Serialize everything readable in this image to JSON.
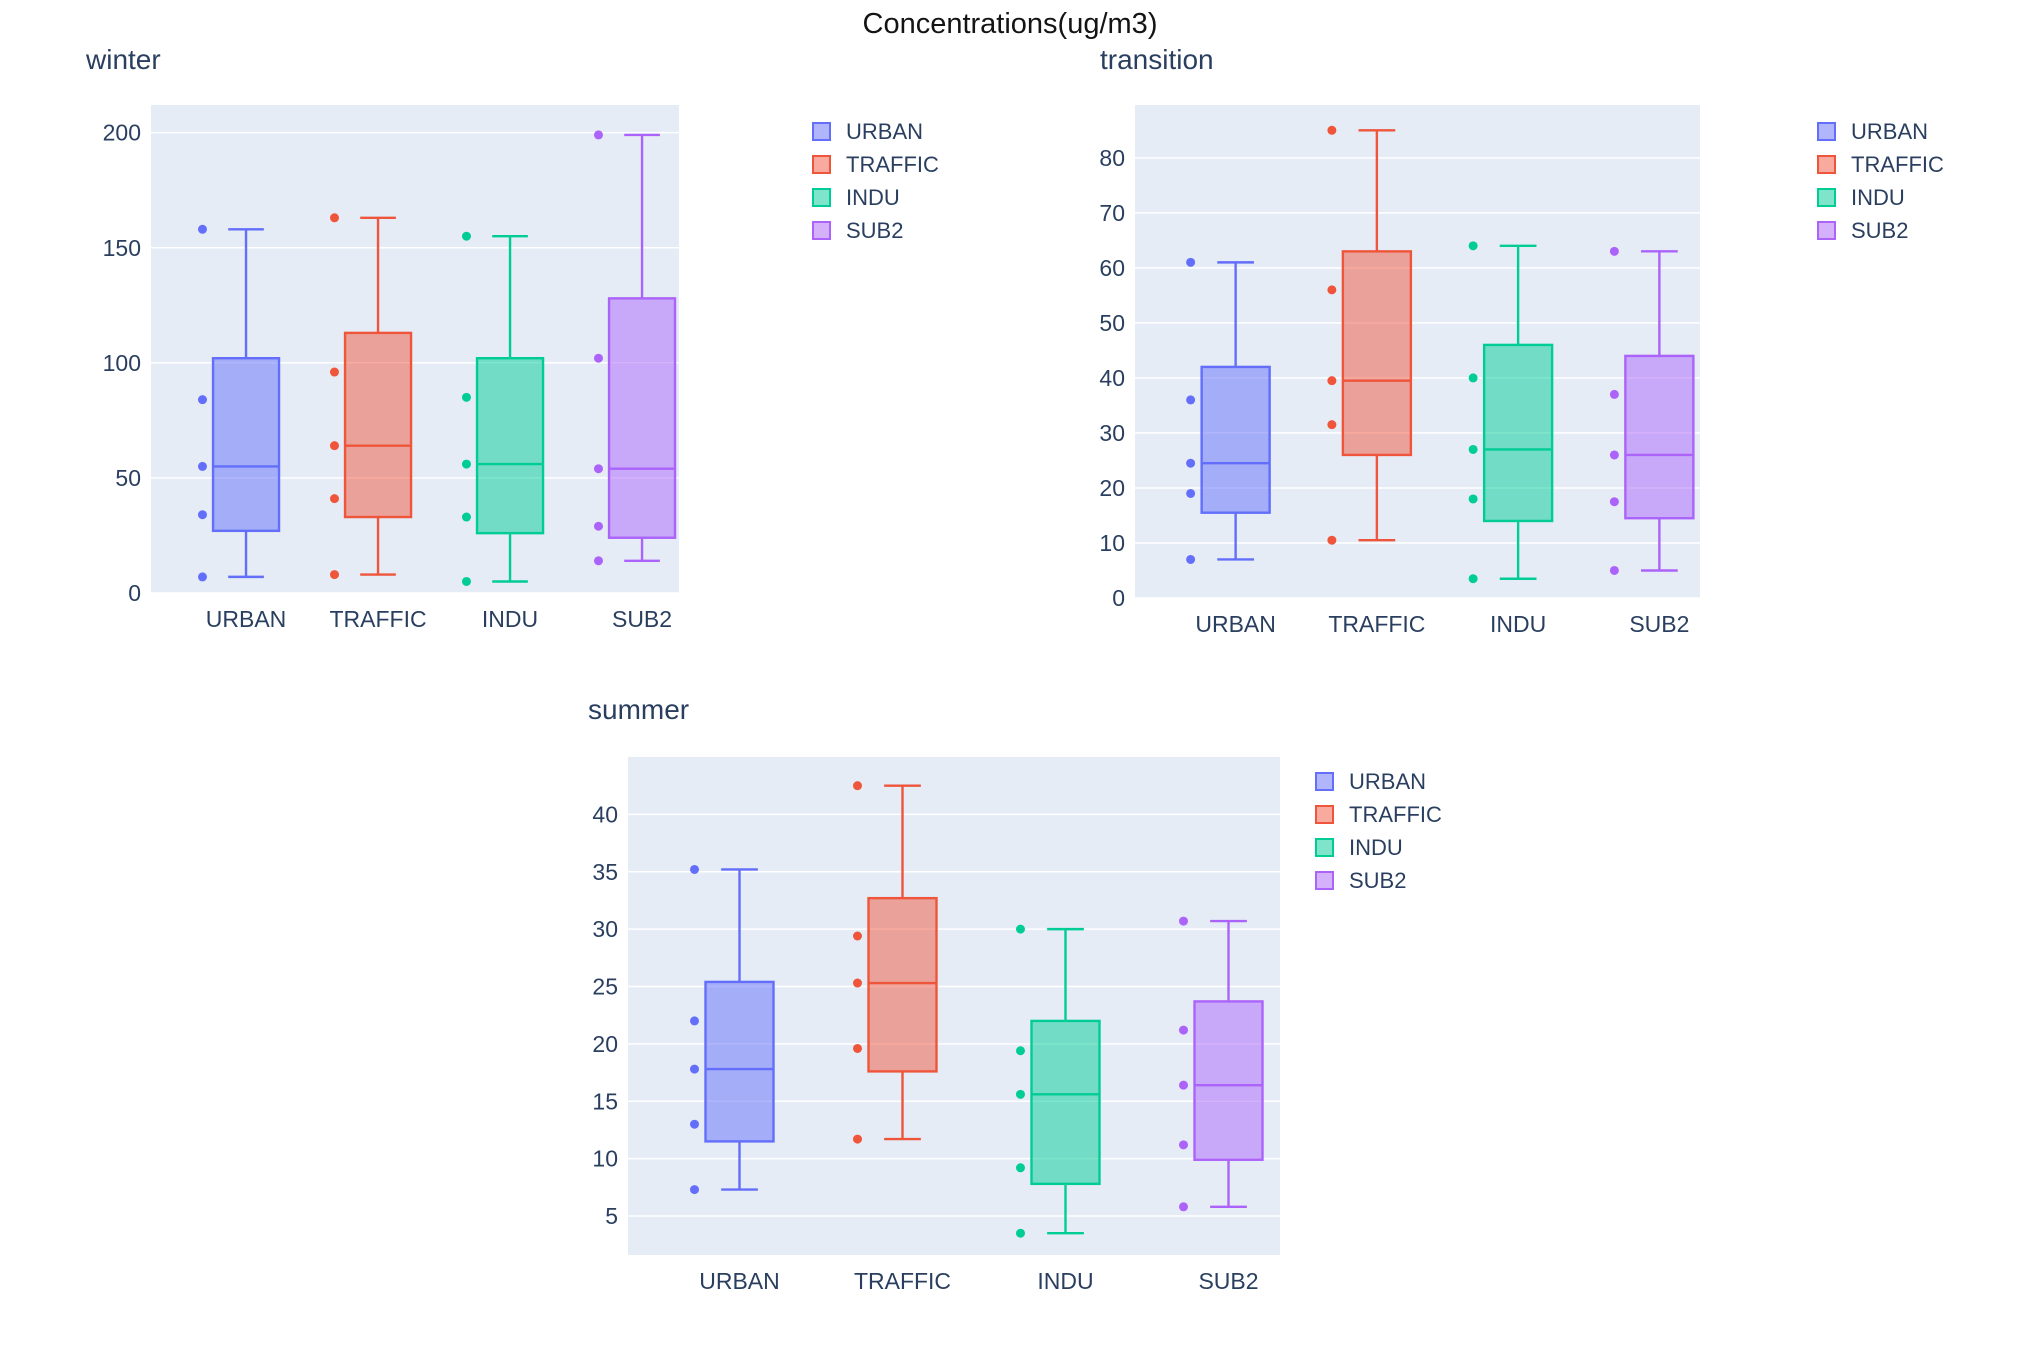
{
  "figure_title": "Concentrations(ug/m3)",
  "colors": {
    "plot_background": "#E5ECF6",
    "gridline": "#FFFFFF",
    "axis_text": "#2a3f5f",
    "title_text": "#141414",
    "URBAN": "#636EFA",
    "TRAFFIC": "#EF553B",
    "INDU": "#00CC96",
    "SUB2": "#AB63FA"
  },
  "legend_items": [
    "URBAN",
    "TRAFFIC",
    "INDU",
    "SUB2"
  ],
  "chart_data": [
    {
      "type": "box",
      "title": "winter",
      "categories": [
        "URBAN",
        "TRAFFIC",
        "INDU",
        "SUB2"
      ],
      "ylim": [
        0,
        212
      ],
      "yticks": [
        0,
        50,
        100,
        150,
        200
      ],
      "grid": true,
      "legend_position": "right",
      "series": [
        {
          "name": "URBAN",
          "color": "#636EFA",
          "low": 7,
          "q1": 27,
          "median": 55,
          "q3": 102,
          "high": 158,
          "points": [
            158,
            84,
            55,
            34,
            7
          ]
        },
        {
          "name": "TRAFFIC",
          "color": "#EF553B",
          "low": 8,
          "q1": 33,
          "median": 64,
          "q3": 113,
          "high": 163,
          "points": [
            163,
            96,
            64,
            41,
            8
          ]
        },
        {
          "name": "INDU",
          "color": "#00CC96",
          "low": 5,
          "q1": 26,
          "median": 56,
          "q3": 102,
          "high": 155,
          "points": [
            155,
            85,
            56,
            33,
            5
          ]
        },
        {
          "name": "SUB2",
          "color": "#AB63FA",
          "low": 14,
          "q1": 24,
          "median": 54,
          "q3": 128,
          "high": 199,
          "points": [
            199,
            102,
            54,
            29,
            14
          ]
        }
      ]
    },
    {
      "type": "box",
      "title": "transition",
      "categories": [
        "URBAN",
        "TRAFFIC",
        "INDU",
        "SUB2"
      ],
      "ylim": [
        0,
        89.6
      ],
      "yticks": [
        0,
        10,
        20,
        30,
        40,
        50,
        60,
        70,
        80
      ],
      "grid": true,
      "legend_position": "right",
      "series": [
        {
          "name": "URBAN",
          "color": "#636EFA",
          "low": 7,
          "q1": 15.5,
          "median": 24.5,
          "q3": 42,
          "high": 61,
          "points": [
            61,
            36,
            24.5,
            19,
            7
          ]
        },
        {
          "name": "TRAFFIC",
          "color": "#EF553B",
          "low": 10.5,
          "q1": 26,
          "median": 39.5,
          "q3": 63,
          "high": 85,
          "points": [
            85,
            56,
            39.5,
            31.5,
            10.5
          ]
        },
        {
          "name": "INDU",
          "color": "#00CC96",
          "low": 3.5,
          "q1": 14,
          "median": 27,
          "q3": 46,
          "high": 64,
          "points": [
            64,
            40,
            27,
            18,
            3.5
          ]
        },
        {
          "name": "SUB2",
          "color": "#AB63FA",
          "low": 5,
          "q1": 14.5,
          "median": 26,
          "q3": 44,
          "high": 63,
          "points": [
            63,
            37,
            26,
            17.5,
            5
          ]
        }
      ]
    },
    {
      "type": "box",
      "title": "summer",
      "categories": [
        "URBAN",
        "TRAFFIC",
        "INDU",
        "SUB2"
      ],
      "ylim": [
        1.6,
        45
      ],
      "yticks": [
        5,
        10,
        15,
        20,
        25,
        30,
        35,
        40
      ],
      "grid": true,
      "legend_position": "right",
      "series": [
        {
          "name": "URBAN",
          "color": "#636EFA",
          "low": 7.3,
          "q1": 11.5,
          "median": 17.8,
          "q3": 25.4,
          "high": 35.2,
          "points": [
            35.2,
            22,
            17.8,
            13,
            7.3
          ]
        },
        {
          "name": "TRAFFIC",
          "color": "#EF553B",
          "low": 11.7,
          "q1": 17.6,
          "median": 25.3,
          "q3": 32.7,
          "high": 42.5,
          "points": [
            42.5,
            29.4,
            25.3,
            19.6,
            11.7
          ]
        },
        {
          "name": "INDU",
          "color": "#00CC96",
          "low": 3.5,
          "q1": 7.8,
          "median": 15.6,
          "q3": 22,
          "high": 30,
          "points": [
            30,
            19.4,
            15.6,
            9.2,
            3.5
          ]
        },
        {
          "name": "SUB2",
          "color": "#AB63FA",
          "low": 5.8,
          "q1": 9.9,
          "median": 16.4,
          "q3": 23.7,
          "high": 30.7,
          "points": [
            30.7,
            21.2,
            16.4,
            11.2,
            5.8
          ]
        }
      ]
    }
  ]
}
